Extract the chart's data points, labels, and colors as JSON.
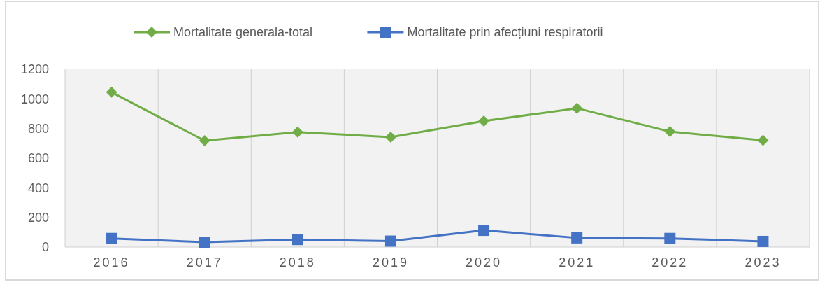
{
  "chart_data": {
    "type": "line",
    "categories": [
      "2016",
      "2017",
      "2018",
      "2019",
      "2020",
      "2021",
      "2022",
      "2023"
    ],
    "series": [
      {
        "name": "Mortalitate generala-total",
        "color": "#70ad47",
        "marker": "diamond",
        "values": [
          1045,
          718,
          776,
          742,
          850,
          937,
          779,
          720
        ]
      },
      {
        "name": "Mortalitate prin afecțiuni respiratorii",
        "color": "#4472c4",
        "marker": "square",
        "values": [
          58,
          33,
          51,
          40,
          113,
          62,
          58,
          38
        ]
      }
    ],
    "ylim": [
      0,
      1200
    ],
    "yticks": [
      0,
      200,
      400,
      600,
      800,
      1000,
      1200
    ],
    "grid": "x",
    "legend": "top",
    "line_style": "solid"
  }
}
